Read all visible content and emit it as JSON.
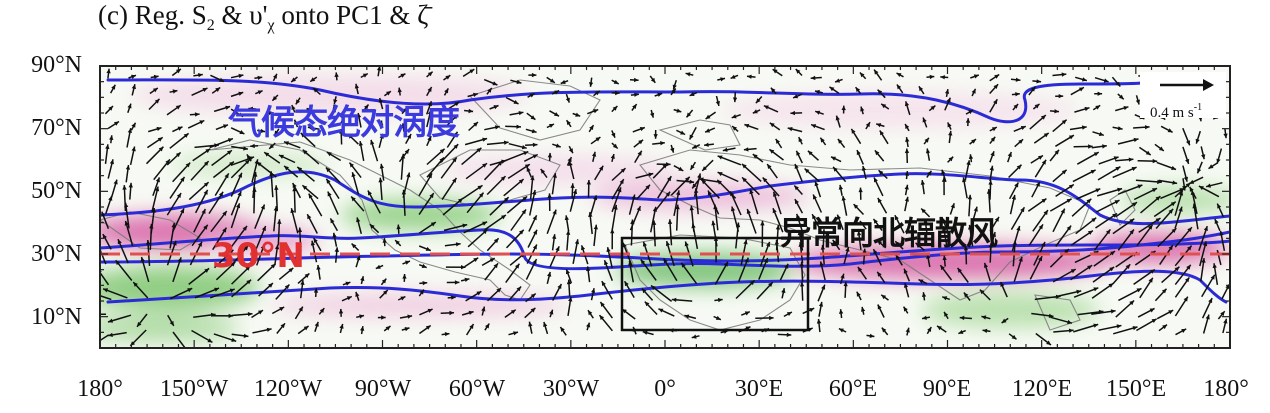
{
  "panel": {
    "letter": "(c) ",
    "title_pre": "Reg. S",
    "title_sub1": "2",
    "title_mid": " & υ'",
    "title_sub2": "χ",
    "title_post": " onto PC1 & ζ̄"
  },
  "lat_ticks": [
    "90°N",
    "70°N",
    "50°N",
    "30°N",
    "10°N"
  ],
  "lon_ticks": [
    "180°",
    "150°W",
    "120°W",
    "90°W",
    "60°W",
    "30°W",
    "0°",
    "30°E",
    "60°E",
    "90°E",
    "120°E",
    "150°E",
    "180°"
  ],
  "annotations": {
    "climatology": "气候态绝对涡度",
    "divergent_wind": "异常向北辐散风",
    "lat30": "30°N"
  },
  "legend": {
    "ref_value": "0.4 m s",
    "ref_exp": "-1"
  },
  "colors": {
    "contour": "#2b2bd6",
    "dash_line": "#e05050",
    "pink": "#e07fbf",
    "green": "#6fbf5f",
    "box": "#111111"
  }
}
